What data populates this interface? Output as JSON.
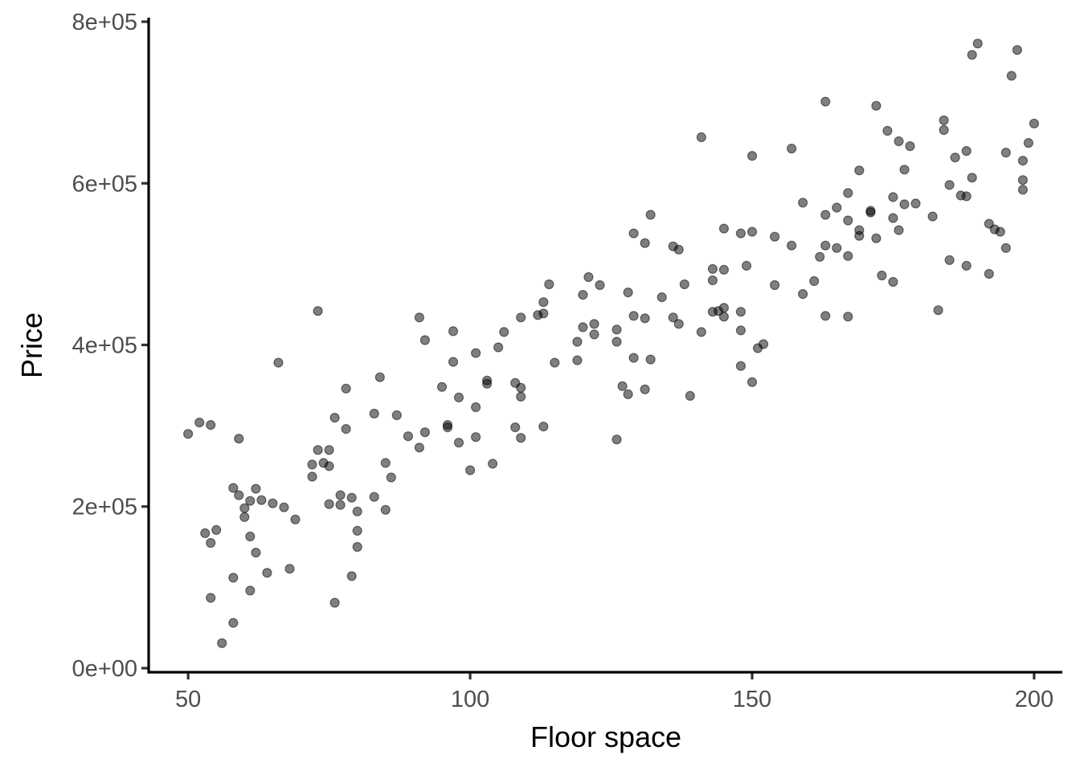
{
  "chart_data": {
    "type": "scatter",
    "title": "",
    "xlabel": "Floor space",
    "ylabel": "Price",
    "xlim": [
      43,
      205
    ],
    "ylim": [
      -5000,
      805000
    ],
    "x_ticks": [
      50,
      100,
      150,
      200
    ],
    "x_tick_labels": [
      "50",
      "100",
      "150",
      "200"
    ],
    "y_ticks": [
      0,
      200000,
      400000,
      600000,
      800000
    ],
    "y_tick_labels": [
      "0e+00",
      "2e+05",
      "4e+05",
      "6e+05",
      "8e+05"
    ],
    "grid": false,
    "legend": "none",
    "point_color": "#000000",
    "point_opacity": 0.5,
    "axis_color": "#000000",
    "tick_label_color": "#4d4d4d",
    "points": [
      [
        50,
        290000
      ],
      [
        52,
        304000
      ],
      [
        53,
        167000
      ],
      [
        54,
        301000
      ],
      [
        54,
        155000
      ],
      [
        54,
        87000
      ],
      [
        55,
        171000
      ],
      [
        56,
        31000
      ],
      [
        58,
        223000
      ],
      [
        58,
        112000
      ],
      [
        58,
        56000
      ],
      [
        59,
        284000
      ],
      [
        59,
        214000
      ],
      [
        60,
        198000
      ],
      [
        60,
        187000
      ],
      [
        61,
        207000
      ],
      [
        61,
        163000
      ],
      [
        61,
        96000
      ],
      [
        62,
        222000
      ],
      [
        62,
        143000
      ],
      [
        63,
        208000
      ],
      [
        64,
        118000
      ],
      [
        65,
        204000
      ],
      [
        66,
        378000
      ],
      [
        67,
        199000
      ],
      [
        68,
        123000
      ],
      [
        69,
        184000
      ],
      [
        72,
        252000
      ],
      [
        72,
        237000
      ],
      [
        73,
        442000
      ],
      [
        73,
        270000
      ],
      [
        74,
        254000
      ],
      [
        75,
        270000
      ],
      [
        75,
        250000
      ],
      [
        75,
        203000
      ],
      [
        76,
        310000
      ],
      [
        76,
        81000
      ],
      [
        77,
        214000
      ],
      [
        77,
        202000
      ],
      [
        78,
        346000
      ],
      [
        78,
        296000
      ],
      [
        79,
        211000
      ],
      [
        79,
        114000
      ],
      [
        80,
        194000
      ],
      [
        80,
        170000
      ],
      [
        80,
        150000
      ],
      [
        83,
        315000
      ],
      [
        83,
        212000
      ],
      [
        84,
        360000
      ],
      [
        85,
        254000
      ],
      [
        85,
        196000
      ],
      [
        86,
        236000
      ],
      [
        87,
        313000
      ],
      [
        89,
        287000
      ],
      [
        91,
        434000
      ],
      [
        91,
        273000
      ],
      [
        92,
        406000
      ],
      [
        92,
        292000
      ],
      [
        95,
        348000
      ],
      [
        96,
        301000
      ],
      [
        96,
        298000
      ],
      [
        97,
        417000
      ],
      [
        97,
        379000
      ],
      [
        98,
        335000
      ],
      [
        98,
        279000
      ],
      [
        100,
        245000
      ],
      [
        101,
        390000
      ],
      [
        101,
        323000
      ],
      [
        101,
        286000
      ],
      [
        103,
        356000
      ],
      [
        103,
        352000
      ],
      [
        104,
        253000
      ],
      [
        105,
        397000
      ],
      [
        106,
        416000
      ],
      [
        108,
        353000
      ],
      [
        108,
        298000
      ],
      [
        109,
        434000
      ],
      [
        109,
        347000
      ],
      [
        109,
        336000
      ],
      [
        109,
        285000
      ],
      [
        112,
        437000
      ],
      [
        113,
        453000
      ],
      [
        113,
        439000
      ],
      [
        113,
        299000
      ],
      [
        114,
        475000
      ],
      [
        115,
        378000
      ],
      [
        119,
        404000
      ],
      [
        119,
        381000
      ],
      [
        120,
        462000
      ],
      [
        120,
        422000
      ],
      [
        121,
        484000
      ],
      [
        122,
        426000
      ],
      [
        122,
        413000
      ],
      [
        123,
        474000
      ],
      [
        126,
        419000
      ],
      [
        126,
        404000
      ],
      [
        126,
        283000
      ],
      [
        127,
        349000
      ],
      [
        128,
        465000
      ],
      [
        128,
        339000
      ],
      [
        129,
        538000
      ],
      [
        129,
        436000
      ],
      [
        129,
        384000
      ],
      [
        131,
        526000
      ],
      [
        131,
        433000
      ],
      [
        131,
        345000
      ],
      [
        132,
        561000
      ],
      [
        132,
        382000
      ],
      [
        134,
        459000
      ],
      [
        136,
        522000
      ],
      [
        136,
        434000
      ],
      [
        137,
        518000
      ],
      [
        137,
        426000
      ],
      [
        138,
        475000
      ],
      [
        139,
        337000
      ],
      [
        141,
        657000
      ],
      [
        141,
        416000
      ],
      [
        143,
        494000
      ],
      [
        143,
        480000
      ],
      [
        143,
        441000
      ],
      [
        144,
        442000
      ],
      [
        145,
        544000
      ],
      [
        145,
        493000
      ],
      [
        145,
        446000
      ],
      [
        145,
        435000
      ],
      [
        148,
        538000
      ],
      [
        148,
        441000
      ],
      [
        148,
        418000
      ],
      [
        148,
        374000
      ],
      [
        149,
        498000
      ],
      [
        150,
        634000
      ],
      [
        150,
        540000
      ],
      [
        150,
        354000
      ],
      [
        151,
        396000
      ],
      [
        152,
        401000
      ],
      [
        154,
        534000
      ],
      [
        154,
        474000
      ],
      [
        157,
        643000
      ],
      [
        157,
        523000
      ],
      [
        159,
        576000
      ],
      [
        159,
        463000
      ],
      [
        161,
        479000
      ],
      [
        162,
        509000
      ],
      [
        163,
        701000
      ],
      [
        163,
        561000
      ],
      [
        163,
        523000
      ],
      [
        163,
        436000
      ],
      [
        165,
        570000
      ],
      [
        165,
        520000
      ],
      [
        167,
        588000
      ],
      [
        167,
        554000
      ],
      [
        167,
        510000
      ],
      [
        167,
        435000
      ],
      [
        169,
        616000
      ],
      [
        169,
        542000
      ],
      [
        169,
        535000
      ],
      [
        171,
        566000
      ],
      [
        171,
        564000
      ],
      [
        172,
        696000
      ],
      [
        172,
        532000
      ],
      [
        173,
        486000
      ],
      [
        174,
        665000
      ],
      [
        175,
        583000
      ],
      [
        175,
        557000
      ],
      [
        175,
        478000
      ],
      [
        176,
        652000
      ],
      [
        176,
        542000
      ],
      [
        177,
        617000
      ],
      [
        177,
        574000
      ],
      [
        178,
        646000
      ],
      [
        179,
        575000
      ],
      [
        182,
        559000
      ],
      [
        183,
        443000
      ],
      [
        184,
        678000
      ],
      [
        184,
        666000
      ],
      [
        185,
        598000
      ],
      [
        185,
        505000
      ],
      [
        186,
        632000
      ],
      [
        187,
        585000
      ],
      [
        188,
        640000
      ],
      [
        188,
        584000
      ],
      [
        188,
        498000
      ],
      [
        189,
        759000
      ],
      [
        189,
        607000
      ],
      [
        190,
        773000
      ],
      [
        192,
        550000
      ],
      [
        192,
        488000
      ],
      [
        193,
        543000
      ],
      [
        194,
        540000
      ],
      [
        195,
        638000
      ],
      [
        195,
        520000
      ],
      [
        196,
        733000
      ],
      [
        197,
        765000
      ],
      [
        198,
        628000
      ],
      [
        198,
        604000
      ],
      [
        198,
        592000
      ],
      [
        199,
        650000
      ],
      [
        200,
        674000
      ]
    ]
  }
}
